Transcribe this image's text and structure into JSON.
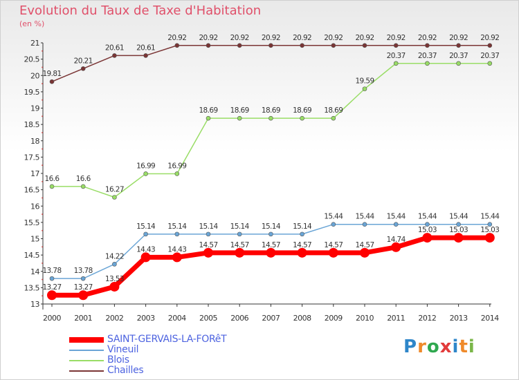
{
  "title": "Evolution du Taux de Taxe d'Habitation",
  "subtitle": "(en %)",
  "logo": {
    "text": "Proxiti",
    "colors": [
      "#2e86c9",
      "#ef8a2a",
      "#2fa84f",
      "#e23b3b",
      "#2e86c9",
      "#ef8a2a",
      "#7ab648"
    ]
  },
  "chart_data": {
    "type": "line",
    "title": "Evolution du Taux de Taxe d'Habitation",
    "ylabel": "(en %)",
    "xlabel": "",
    "ylim": [
      13,
      21
    ],
    "yticks": [
      "13",
      "13.5",
      "14",
      "14.5",
      "15",
      "15.5",
      "16",
      "16.5",
      "17",
      "17.5",
      "18",
      "18.5",
      "19",
      "19.5",
      "20",
      "20.5",
      "21"
    ],
    "x": [
      "2000",
      "2001",
      "2002",
      "2003",
      "2004",
      "2005",
      "2006",
      "2007",
      "2008",
      "2009",
      "2010",
      "2011",
      "2012",
      "2013",
      "2014"
    ],
    "series": [
      {
        "name": "SAINT-GERVAIS-LA-FORêT",
        "color": "#ff0000",
        "values": [
          13.27,
          13.27,
          13.53,
          14.43,
          14.43,
          14.57,
          14.57,
          14.57,
          14.57,
          14.57,
          14.57,
          14.74,
          15.03,
          15.03,
          15.03
        ],
        "labels": [
          "13.27",
          "13.27",
          "13.53",
          "14.43",
          "14.43",
          "14.57",
          "14.57",
          "14.57",
          "14.57",
          "14.57",
          "14.57",
          "14.74",
          "15.03",
          "15.03",
          "15.03"
        ]
      },
      {
        "name": "Vineuil",
        "color": "#6aa5d6",
        "values": [
          13.78,
          13.78,
          14.22,
          15.14,
          15.14,
          15.14,
          15.14,
          15.14,
          15.14,
          15.44,
          15.44,
          15.44,
          15.44,
          15.44,
          15.44
        ],
        "labels": [
          "13.78",
          "13.78",
          "14.22",
          "15.14",
          "15.14",
          "15.14",
          "15.14",
          "15.14",
          "15.14",
          "15.44",
          "15.44",
          "15.44",
          "15.44",
          "15.44",
          "15.44"
        ]
      },
      {
        "name": "Blois",
        "color": "#99dd66",
        "values": [
          16.6,
          16.6,
          16.27,
          16.99,
          16.99,
          18.69,
          18.69,
          18.69,
          18.69,
          18.69,
          19.59,
          20.37,
          20.37,
          20.37,
          20.37
        ],
        "labels": [
          "16.6",
          "16.6",
          "16.27",
          "16.99",
          "16.99",
          "18.69",
          "18.69",
          "18.69",
          "18.69",
          "18.69",
          "19.59",
          "20.37",
          "20.37",
          "20.37",
          "20.37"
        ]
      },
      {
        "name": "Chailles",
        "color": "#7a3535",
        "values": [
          19.81,
          20.21,
          20.61,
          20.61,
          20.92,
          20.92,
          20.92,
          20.92,
          20.92,
          20.92,
          20.92,
          20.92,
          20.92,
          20.92,
          20.92
        ],
        "labels": [
          "19.81",
          "20.21",
          "20.61",
          "20.61",
          "20.92",
          "20.92",
          "20.92",
          "20.92",
          "20.92",
          "20.92",
          "20.92",
          "20.92",
          "20.92",
          "20.92",
          "20.92"
        ]
      }
    ],
    "legend": [
      "SAINT-GERVAIS-LA-FORêT",
      "Vineuil",
      "Blois",
      "Chailles"
    ],
    "grid": false
  }
}
